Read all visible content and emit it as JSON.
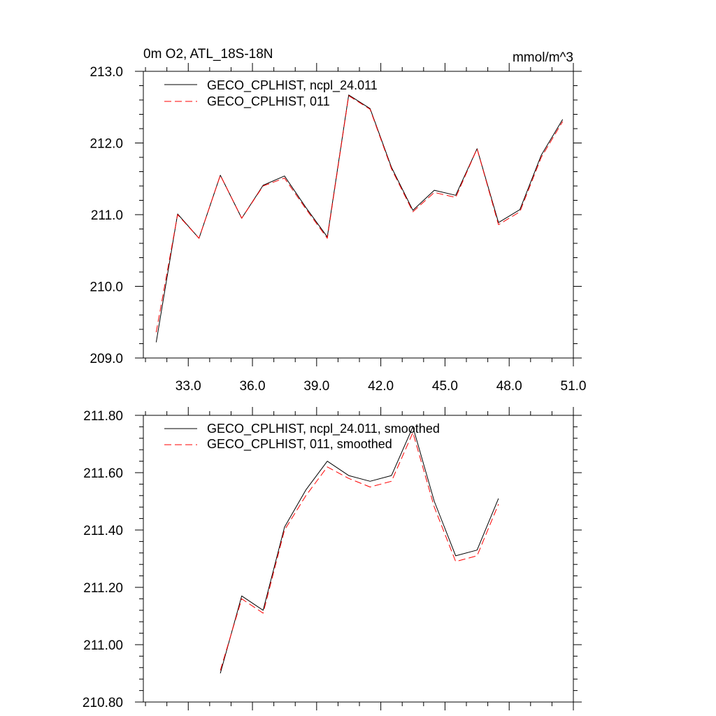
{
  "chart_data": [
    {
      "type": "line",
      "title": "0m O2, ATL_18S-18N",
      "units": "mmol/m^3",
      "xlabel": "",
      "ylabel": "",
      "xlim": [
        30.9,
        51.0
      ],
      "ylim": [
        209.0,
        213.0
      ],
      "x_ticks": [
        "33.0",
        "36.0",
        "39.0",
        "42.0",
        "45.0",
        "48.0",
        "51.0"
      ],
      "y_ticks": [
        "209.0",
        "210.0",
        "211.0",
        "212.0",
        "213.0"
      ],
      "grid": false,
      "legend_position": "top-left",
      "x": [
        31.5,
        32.5,
        33.5,
        34.5,
        35.5,
        36.5,
        37.5,
        38.5,
        39.5,
        40.5,
        41.5,
        42.5,
        43.5,
        44.5,
        45.5,
        46.5,
        47.5,
        48.5,
        49.5,
        50.5
      ],
      "series": [
        {
          "name": "GECO_CPLHIST, ncpl_24.011",
          "color": "#000000",
          "dash": "solid",
          "values": [
            209.22,
            211.01,
            210.67,
            211.55,
            210.95,
            211.41,
            211.54,
            211.1,
            210.69,
            212.67,
            212.48,
            211.66,
            211.06,
            211.34,
            211.27,
            211.92,
            210.89,
            211.07,
            211.83,
            212.33
          ]
        },
        {
          "name": "GECO_CPLHIST, 011",
          "color": "#ff0000",
          "dash": "dashed",
          "values": [
            209.36,
            211.0,
            210.67,
            211.55,
            210.95,
            211.4,
            211.51,
            211.08,
            210.67,
            212.66,
            212.47,
            211.64,
            211.04,
            211.31,
            211.24,
            211.92,
            210.86,
            211.04,
            211.8,
            212.3
          ]
        }
      ]
    },
    {
      "type": "line",
      "title": "",
      "xlabel": "",
      "ylabel": "",
      "xlim": [
        30.9,
        51.0
      ],
      "ylim": [
        210.8,
        211.8
      ],
      "x_ticks": [
        "",
        "",
        "",
        "",
        "",
        "",
        ""
      ],
      "y_ticks": [
        "210.80",
        "211.00",
        "211.20",
        "211.40",
        "211.60",
        "211.80"
      ],
      "grid": false,
      "legend_position": "top-left",
      "x": [
        34.5,
        35.5,
        36.5,
        37.5,
        38.5,
        39.5,
        40.5,
        41.5,
        42.5,
        43.5,
        44.5,
        45.5,
        46.5,
        47.5
      ],
      "series": [
        {
          "name": "GECO_CPLHIST, ncpl_24.011, smoothed",
          "color": "#000000",
          "dash": "solid",
          "values": [
            210.9,
            211.17,
            211.12,
            211.41,
            211.54,
            211.64,
            211.59,
            211.57,
            211.59,
            211.76,
            211.5,
            211.31,
            211.33,
            211.51
          ]
        },
        {
          "name": "GECO_CPLHIST, 011, smoothed",
          "color": "#ff0000",
          "dash": "dashed",
          "values": [
            210.91,
            211.16,
            211.11,
            211.4,
            211.52,
            211.62,
            211.58,
            211.55,
            211.57,
            211.74,
            211.48,
            211.29,
            211.31,
            211.49
          ]
        }
      ]
    }
  ]
}
